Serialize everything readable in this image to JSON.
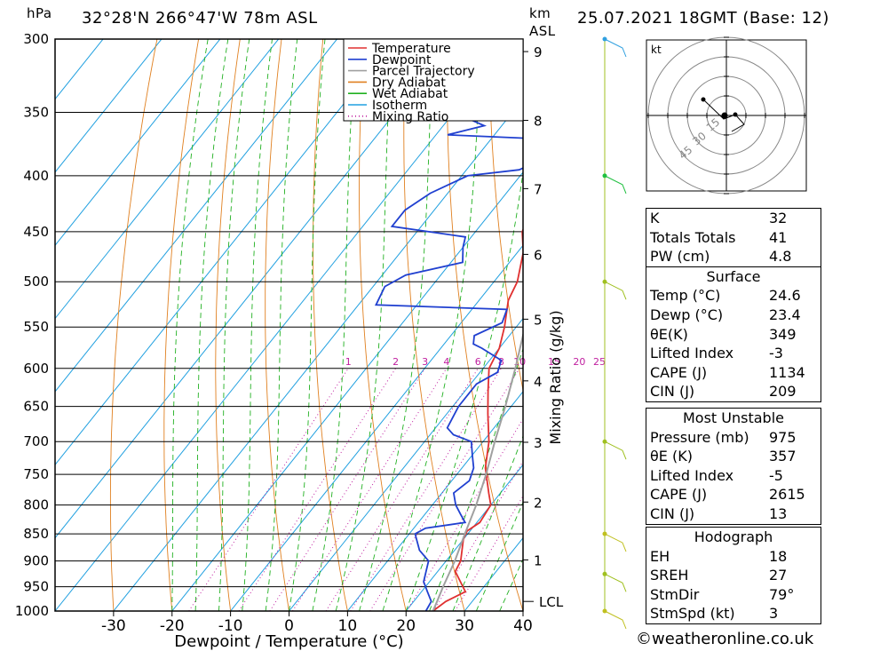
{
  "header": {
    "pressure_unit": "hPa",
    "location": "32°28'N 266°47'W 78m ASL",
    "km_label": "km",
    "asl_label": "ASL",
    "datetime": "25.07.2021 18GMT (Base: 12)"
  },
  "chart_data": {
    "type": "line",
    "title": "32°28'N 266°47'W 78m ASL",
    "xlabel": "Dewpoint / Temperature (°C)",
    "ylabel": "hPa",
    "mixing_ratio_axis_label": "Mixing Ratio (g/kg)",
    "xlim": [
      -40,
      40
    ],
    "ylim": [
      1000,
      300
    ],
    "x_ticks": [
      -30,
      -20,
      -10,
      0,
      10,
      20,
      30,
      40
    ],
    "pressure_ticks": [
      300,
      350,
      400,
      450,
      500,
      550,
      600,
      650,
      700,
      750,
      800,
      850,
      900,
      950,
      1000
    ],
    "km_ticks": [
      {
        "km": "1",
        "p": 898
      },
      {
        "km": "2",
        "p": 795
      },
      {
        "km": "3",
        "p": 701
      },
      {
        "km": "4",
        "p": 616
      },
      {
        "km": "5",
        "p": 541
      },
      {
        "km": "6",
        "p": 472
      },
      {
        "km": "7",
        "p": 411
      },
      {
        "km": "8",
        "p": 356
      },
      {
        "km": "9",
        "p": 308
      }
    ],
    "lcl": {
      "label": "LCL",
      "p": 980
    },
    "mixing_ratio_labels": [
      "1",
      "2",
      "3",
      "4",
      "6",
      "8",
      "10",
      "15",
      "20",
      "25"
    ],
    "series": [
      {
        "name": "Temperature",
        "color": "#e03030",
        "points": [
          [
            24.6,
            1000
          ],
          [
            25.5,
            980
          ],
          [
            27.5,
            960
          ],
          [
            23,
            920
          ],
          [
            22.5,
            900
          ],
          [
            20,
            860
          ],
          [
            19.5,
            845
          ],
          [
            20.5,
            830
          ],
          [
            20,
            800
          ],
          [
            18,
            780
          ],
          [
            14,
            740
          ],
          [
            11,
            700
          ],
          [
            7,
            660
          ],
          [
            4,
            630
          ],
          [
            1,
            600
          ],
          [
            0,
            575
          ],
          [
            -2,
            550
          ],
          [
            -5,
            520
          ],
          [
            -6,
            500
          ],
          [
            -9,
            470
          ],
          [
            -12,
            450
          ],
          [
            -14,
            420
          ],
          [
            -18,
            400
          ],
          [
            -22,
            380
          ],
          [
            -25,
            360
          ],
          [
            -30,
            340
          ],
          [
            -33,
            320
          ],
          [
            -37,
            300
          ]
        ]
      },
      {
        "name": "Dewpoint",
        "color": "#2040d0",
        "points": [
          [
            23.4,
            1000
          ],
          [
            23,
            980
          ],
          [
            21,
            960
          ],
          [
            19,
            940
          ],
          [
            18,
            920
          ],
          [
            17,
            900
          ],
          [
            14,
            880
          ],
          [
            12,
            860
          ],
          [
            11,
            850
          ],
          [
            12,
            840
          ],
          [
            18,
            830
          ],
          [
            16,
            815
          ],
          [
            14,
            800
          ],
          [
            12,
            780
          ],
          [
            13,
            760
          ],
          [
            12,
            740
          ],
          [
            10,
            720
          ],
          [
            8,
            700
          ],
          [
            4,
            690
          ],
          [
            2,
            680
          ],
          [
            1,
            650
          ],
          [
            1,
            620
          ],
          [
            3,
            605
          ],
          [
            2,
            590
          ],
          [
            -3,
            575
          ],
          [
            -5,
            570
          ],
          [
            -6,
            560
          ],
          [
            -3,
            545
          ],
          [
            -4,
            530
          ],
          [
            -27,
            525
          ],
          [
            -28,
            505
          ],
          [
            -26,
            493
          ],
          [
            -18,
            480
          ],
          [
            -20,
            465
          ],
          [
            -21,
            455
          ],
          [
            -35,
            445
          ],
          [
            -35,
            430
          ],
          [
            -33,
            415
          ],
          [
            -29,
            400
          ],
          [
            -21,
            395
          ],
          [
            -18,
            385
          ],
          [
            -22,
            370
          ],
          [
            -38,
            367
          ],
          [
            -33,
            360
          ],
          [
            -40,
            350
          ],
          [
            -35,
            345
          ],
          [
            -40,
            338
          ],
          [
            -34,
            335
          ],
          [
            -43,
            325
          ],
          [
            -41,
            315
          ],
          [
            -36,
            305
          ],
          [
            -46,
            300
          ]
        ]
      },
      {
        "name": "Parcel Trajectory",
        "color": "#a0a0a0",
        "points": [
          [
            24.6,
            1000
          ],
          [
            24,
            980
          ],
          [
            23,
            950
          ],
          [
            21.5,
            900
          ],
          [
            19.5,
            850
          ],
          [
            17.5,
            800
          ],
          [
            15,
            750
          ],
          [
            12,
            700
          ],
          [
            9,
            650
          ],
          [
            5.5,
            600
          ],
          [
            1.5,
            550
          ],
          [
            -3,
            500
          ],
          [
            -8,
            450
          ],
          [
            -14,
            400
          ],
          [
            -22,
            350
          ]
        ]
      }
    ],
    "background_lines": [
      "Dry Adiabat",
      "Wet Adiabat",
      "Isotherm",
      "Mixing Ratio"
    ],
    "legend_placement": "top-right",
    "wind_profile": [
      {
        "p": 300,
        "color": "#30a0e0"
      },
      {
        "p": 400,
        "color": "#20c040"
      },
      {
        "p": 500,
        "color": "#a0c020"
      },
      {
        "p": 700,
        "color": "#a0c020"
      },
      {
        "p": 850,
        "color": "#c0c020"
      },
      {
        "p": 925,
        "color": "#a0c020"
      },
      {
        "p": 1000,
        "color": "#c0c020"
      }
    ]
  },
  "legend": [
    {
      "label": "Temperature",
      "color": "#e03030",
      "dash": ""
    },
    {
      "label": "Dewpoint",
      "color": "#2040d0",
      "dash": ""
    },
    {
      "label": "Parcel Trajectory",
      "color": "#a0a0a0",
      "dash": ""
    },
    {
      "label": "Dry Adiabat",
      "color": "#e08020",
      "dash": ""
    },
    {
      "label": "Wet Adiabat",
      "color": "#20b020",
      "dash": ""
    },
    {
      "label": "Isotherm",
      "color": "#20a0e0",
      "dash": ""
    },
    {
      "label": "Mixing Ratio",
      "color": "#c020a0",
      "dash": "1,3"
    }
  ],
  "hodograph": {
    "unit_label": "kt",
    "ring_labels": [
      "15",
      "30",
      "45"
    ]
  },
  "indices": [
    {
      "label": "K",
      "value": "32"
    },
    {
      "label": "Totals Totals",
      "value": "41"
    },
    {
      "label": "PW (cm)",
      "value": "4.8"
    }
  ],
  "surface": {
    "title": "Surface",
    "rows": [
      {
        "label": "Temp (°C)",
        "value": "24.6"
      },
      {
        "label": "Dewp (°C)",
        "value": "23.4"
      },
      {
        "label": "θE(K)",
        "value": "349"
      },
      {
        "label": "Lifted Index",
        "value": "-3"
      },
      {
        "label": "CAPE (J)",
        "value": "1134"
      },
      {
        "label": "CIN (J)",
        "value": "209"
      }
    ]
  },
  "most_unstable": {
    "title": "Most Unstable",
    "rows": [
      {
        "label": "Pressure (mb)",
        "value": "975"
      },
      {
        "label": "θE (K)",
        "value": "357"
      },
      {
        "label": "Lifted Index",
        "value": "-5"
      },
      {
        "label": "CAPE (J)",
        "value": "2615"
      },
      {
        "label": "CIN (J)",
        "value": "13"
      }
    ]
  },
  "hodograph_table": {
    "title": "Hodograph",
    "rows": [
      {
        "label": "EH",
        "value": "18"
      },
      {
        "label": "SREH",
        "value": "27"
      },
      {
        "label": "StmDir",
        "value": "79°"
      },
      {
        "label": "StmSpd (kt)",
        "value": "3"
      }
    ]
  },
  "copyright": "©weatheronline.co.uk"
}
